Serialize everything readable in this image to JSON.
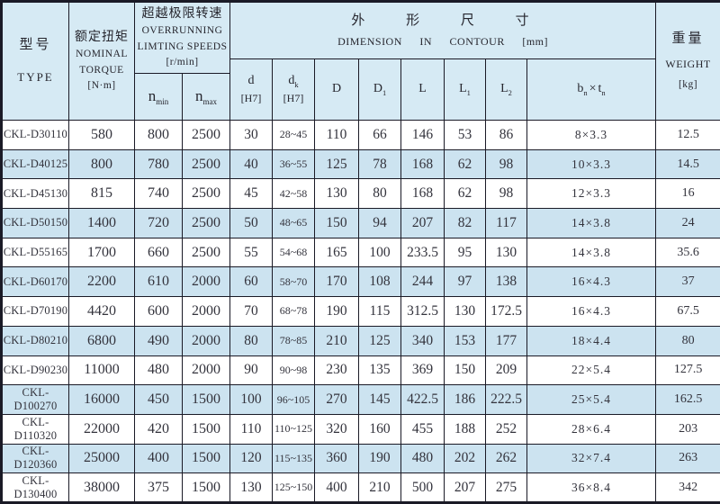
{
  "colors": {
    "header_bg": "#d6eaf4",
    "stripe_bg": "#cce3f0",
    "row_bg": "#ffffff",
    "border": "#1a1a26",
    "text": "#26262e"
  },
  "table": {
    "header": {
      "type": {
        "zh": "型号",
        "en": "TYPE"
      },
      "torque": {
        "zh": "额定扭矩",
        "en1": "NOMINAL",
        "en2": "TORQUE",
        "unit": "[N·m]"
      },
      "speeds": {
        "zh": "超越极限转速",
        "en1": "OVERRUNNING",
        "en2": "LIMTING SPEEDS",
        "unit": "[r/min]",
        "n_min": {
          "base": "n",
          "sub": "min"
        },
        "n_max": {
          "base": "n",
          "sub": "max"
        }
      },
      "dimension": {
        "zh": "外 形 尺 寸",
        "en": "DIMENSION IN CONTOUR [mm]"
      },
      "dim_cols": [
        {
          "main": "d",
          "sub": "",
          "line2": "[H7]"
        },
        {
          "main": "d",
          "sub": "k",
          "line2": "[H7]"
        },
        {
          "main": "D",
          "sub": "",
          "line2": ""
        },
        {
          "main": "D",
          "sub": "1",
          "line2": ""
        },
        {
          "main": "L",
          "sub": "",
          "line2": ""
        },
        {
          "main": "L",
          "sub": "1",
          "line2": ""
        },
        {
          "main": "L",
          "sub": "2",
          "line2": ""
        },
        {
          "main": "b",
          "sub": "n",
          "times": "×",
          "main2": "t",
          "sub2": "n",
          "line2": ""
        }
      ],
      "weight": {
        "zh": "重量",
        "en": "WEIGHT",
        "unit": "[kg]"
      }
    },
    "rows": [
      {
        "type": "CKL-D30110",
        "torque": "580",
        "n_min": "800",
        "n_max": "2500",
        "d": "30",
        "d_k": "28~45",
        "D": "110",
        "D1": "66",
        "L": "146",
        "L1": "53",
        "L2": "86",
        "b_t": "8×3.3",
        "weight": "12.5"
      },
      {
        "type": "CKL-D40125",
        "torque": "800",
        "n_min": "780",
        "n_max": "2500",
        "d": "40",
        "d_k": "36~55",
        "D": "125",
        "D1": "78",
        "L": "168",
        "L1": "62",
        "L2": "98",
        "b_t": "10×3.3",
        "weight": "14.5"
      },
      {
        "type": "CKL-D45130",
        "torque": "815",
        "n_min": "740",
        "n_max": "2500",
        "d": "45",
        "d_k": "42~58",
        "D": "130",
        "D1": "80",
        "L": "168",
        "L1": "62",
        "L2": "98",
        "b_t": "12×3.3",
        "weight": "16"
      },
      {
        "type": "CKL-D50150",
        "torque": "1400",
        "n_min": "720",
        "n_max": "2500",
        "d": "50",
        "d_k": "48~65",
        "D": "150",
        "D1": "94",
        "L": "207",
        "L1": "82",
        "L2": "117",
        "b_t": "14×3.8",
        "weight": "24"
      },
      {
        "type": "CKL-D55165",
        "torque": "1700",
        "n_min": "660",
        "n_max": "2500",
        "d": "55",
        "d_k": "54~68",
        "D": "165",
        "D1": "100",
        "L": "233.5",
        "L1": "95",
        "L2": "130",
        "b_t": "14×3.8",
        "weight": "35.6"
      },
      {
        "type": "CKL-D60170",
        "torque": "2200",
        "n_min": "610",
        "n_max": "2000",
        "d": "60",
        "d_k": "58~70",
        "D": "170",
        "D1": "108",
        "L": "244",
        "L1": "97",
        "L2": "138",
        "b_t": "16×4.3",
        "weight": "37"
      },
      {
        "type": "CKL-D70190",
        "torque": "4420",
        "n_min": "600",
        "n_max": "2000",
        "d": "70",
        "d_k": "68~78",
        "D": "190",
        "D1": "115",
        "L": "312.5",
        "L1": "130",
        "L2": "172.5",
        "b_t": "16×4.3",
        "weight": "67.5"
      },
      {
        "type": "CKL-D80210",
        "torque": "6800",
        "n_min": "490",
        "n_max": "2000",
        "d": "80",
        "d_k": "78~85",
        "D": "210",
        "D1": "125",
        "L": "340",
        "L1": "153",
        "L2": "177",
        "b_t": "18×4.4",
        "weight": "80"
      },
      {
        "type": "CKL-D90230",
        "torque": "11000",
        "n_min": "480",
        "n_max": "2000",
        "d": "90",
        "d_k": "90~98",
        "D": "230",
        "D1": "135",
        "L": "369",
        "L1": "150",
        "L2": "209",
        "b_t": "22×5.4",
        "weight": "127.5"
      },
      {
        "type": "CKL-D100270",
        "torque": "16000",
        "n_min": "450",
        "n_max": "1500",
        "d": "100",
        "d_k": "96~105",
        "D": "270",
        "D1": "145",
        "L": "422.5",
        "L1": "186",
        "L2": "222.5",
        "b_t": "25×5.4",
        "weight": "162.5"
      },
      {
        "type": "CKL-D110320",
        "torque": "22000",
        "n_min": "420",
        "n_max": "1500",
        "d": "110",
        "d_k": "110~125",
        "D": "320",
        "D1": "160",
        "L": "455",
        "L1": "188",
        "L2": "252",
        "b_t": "28×6.4",
        "weight": "203"
      },
      {
        "type": "CKL-D120360",
        "torque": "25000",
        "n_min": "400",
        "n_max": "1500",
        "d": "120",
        "d_k": "115~135",
        "D": "360",
        "D1": "190",
        "L": "480",
        "L1": "202",
        "L2": "262",
        "b_t": "32×7.4",
        "weight": "263"
      },
      {
        "type": "CKL-D130400",
        "torque": "38000",
        "n_min": "375",
        "n_max": "1500",
        "d": "130",
        "d_k": "125~150",
        "D": "400",
        "D1": "210",
        "L": "500",
        "L1": "207",
        "L2": "275",
        "b_t": "36×8.4",
        "weight": "342"
      }
    ]
  }
}
